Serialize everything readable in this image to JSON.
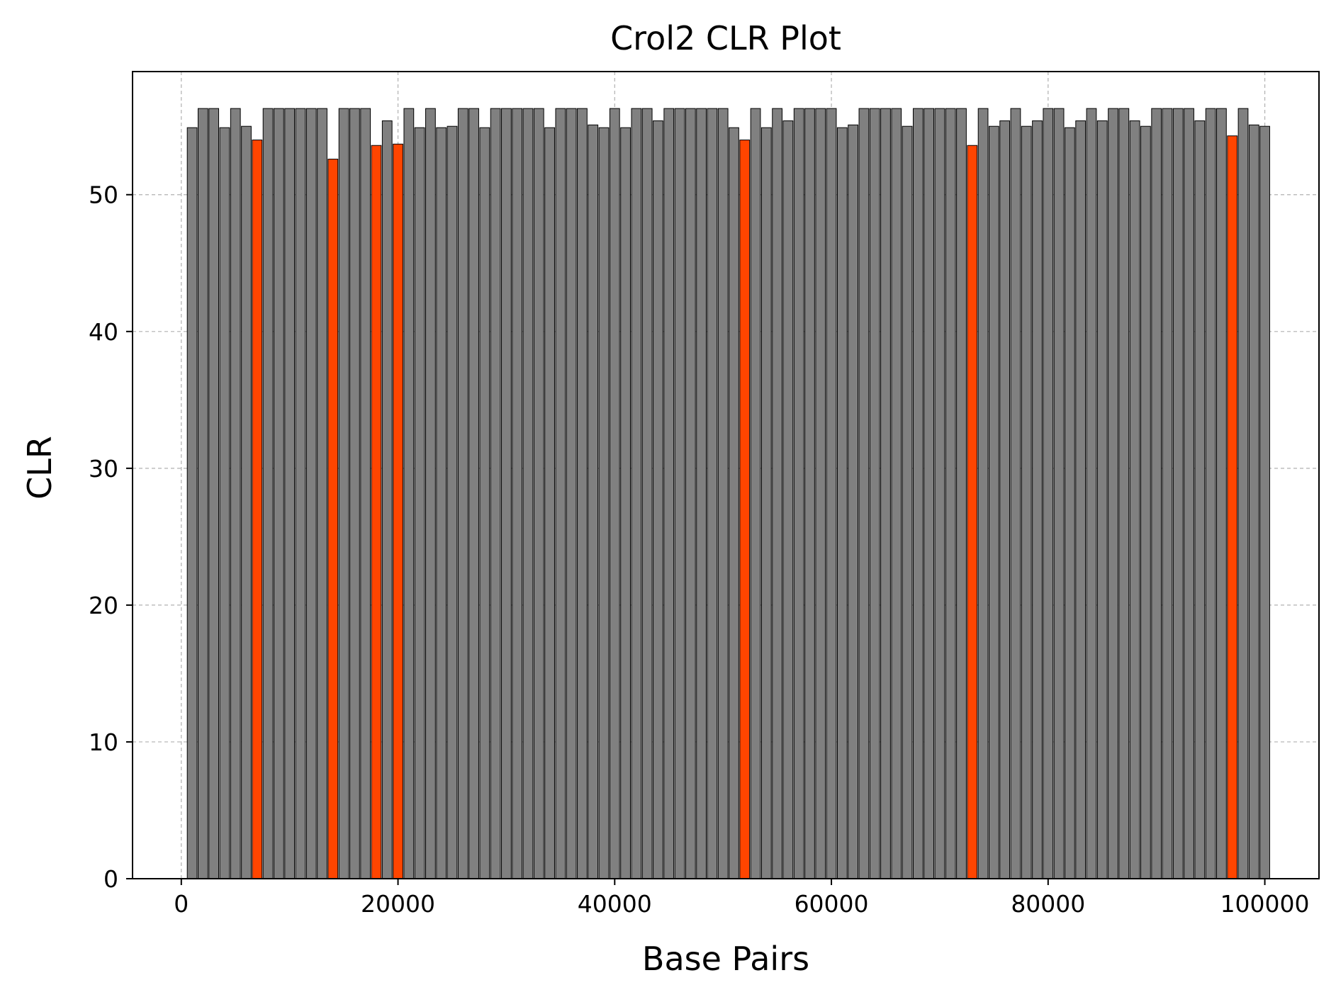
{
  "chart_data": {
    "type": "bar",
    "title": "Crol2 CLR Plot",
    "xlabel": "Base Pairs",
    "ylabel": "CLR",
    "xlim": [
      -4500,
      105000
    ],
    "ylim": [
      0,
      59
    ],
    "xticks": [
      0,
      20000,
      40000,
      60000,
      80000,
      100000
    ],
    "yticks": [
      0,
      10,
      20,
      30,
      40,
      50
    ],
    "grid": true,
    "bar_width": 900,
    "colors": {
      "default": "#808080",
      "highlight": "#ff4500",
      "edge": "#000000",
      "grid": "#b0b0b0"
    },
    "bars": [
      {
        "x": 1000,
        "y": 54.9,
        "highlight": false
      },
      {
        "x": 2000,
        "y": 56.3,
        "highlight": false
      },
      {
        "x": 3000,
        "y": 56.3,
        "highlight": false
      },
      {
        "x": 4000,
        "y": 54.9,
        "highlight": false
      },
      {
        "x": 5000,
        "y": 56.3,
        "highlight": false
      },
      {
        "x": 6000,
        "y": 55.0,
        "highlight": false
      },
      {
        "x": 7000,
        "y": 54.0,
        "highlight": true
      },
      {
        "x": 8000,
        "y": 56.3,
        "highlight": false
      },
      {
        "x": 9000,
        "y": 56.3,
        "highlight": false
      },
      {
        "x": 10000,
        "y": 56.3,
        "highlight": false
      },
      {
        "x": 11000,
        "y": 56.3,
        "highlight": false
      },
      {
        "x": 12000,
        "y": 56.3,
        "highlight": false
      },
      {
        "x": 13000,
        "y": 56.3,
        "highlight": false
      },
      {
        "x": 14000,
        "y": 52.6,
        "highlight": true
      },
      {
        "x": 15000,
        "y": 56.3,
        "highlight": false
      },
      {
        "x": 16000,
        "y": 56.3,
        "highlight": false
      },
      {
        "x": 17000,
        "y": 56.3,
        "highlight": false
      },
      {
        "x": 18000,
        "y": 53.6,
        "highlight": true
      },
      {
        "x": 19000,
        "y": 55.4,
        "highlight": false
      },
      {
        "x": 20000,
        "y": 53.7,
        "highlight": true
      },
      {
        "x": 21000,
        "y": 56.3,
        "highlight": false
      },
      {
        "x": 22000,
        "y": 54.9,
        "highlight": false
      },
      {
        "x": 23000,
        "y": 56.3,
        "highlight": false
      },
      {
        "x": 24000,
        "y": 54.9,
        "highlight": false
      },
      {
        "x": 25000,
        "y": 55.0,
        "highlight": false
      },
      {
        "x": 26000,
        "y": 56.3,
        "highlight": false
      },
      {
        "x": 27000,
        "y": 56.3,
        "highlight": false
      },
      {
        "x": 28000,
        "y": 54.9,
        "highlight": false
      },
      {
        "x": 29000,
        "y": 56.3,
        "highlight": false
      },
      {
        "x": 30000,
        "y": 56.3,
        "highlight": false
      },
      {
        "x": 31000,
        "y": 56.3,
        "highlight": false
      },
      {
        "x": 32000,
        "y": 56.3,
        "highlight": false
      },
      {
        "x": 33000,
        "y": 56.3,
        "highlight": false
      },
      {
        "x": 34000,
        "y": 54.9,
        "highlight": false
      },
      {
        "x": 35000,
        "y": 56.3,
        "highlight": false
      },
      {
        "x": 36000,
        "y": 56.3,
        "highlight": false
      },
      {
        "x": 37000,
        "y": 56.3,
        "highlight": false
      },
      {
        "x": 38000,
        "y": 55.1,
        "highlight": false
      },
      {
        "x": 39000,
        "y": 54.9,
        "highlight": false
      },
      {
        "x": 40000,
        "y": 56.3,
        "highlight": false
      },
      {
        "x": 41000,
        "y": 54.9,
        "highlight": false
      },
      {
        "x": 42000,
        "y": 56.3,
        "highlight": false
      },
      {
        "x": 43000,
        "y": 56.3,
        "highlight": false
      },
      {
        "x": 44000,
        "y": 55.4,
        "highlight": false
      },
      {
        "x": 45000,
        "y": 56.3,
        "highlight": false
      },
      {
        "x": 46000,
        "y": 56.3,
        "highlight": false
      },
      {
        "x": 47000,
        "y": 56.3,
        "highlight": false
      },
      {
        "x": 48000,
        "y": 56.3,
        "highlight": false
      },
      {
        "x": 49000,
        "y": 56.3,
        "highlight": false
      },
      {
        "x": 50000,
        "y": 56.3,
        "highlight": false
      },
      {
        "x": 51000,
        "y": 54.9,
        "highlight": false
      },
      {
        "x": 52000,
        "y": 54.0,
        "highlight": true
      },
      {
        "x": 53000,
        "y": 56.3,
        "highlight": false
      },
      {
        "x": 54000,
        "y": 54.9,
        "highlight": false
      },
      {
        "x": 55000,
        "y": 56.3,
        "highlight": false
      },
      {
        "x": 56000,
        "y": 55.4,
        "highlight": false
      },
      {
        "x": 57000,
        "y": 56.3,
        "highlight": false
      },
      {
        "x": 58000,
        "y": 56.3,
        "highlight": false
      },
      {
        "x": 59000,
        "y": 56.3,
        "highlight": false
      },
      {
        "x": 60000,
        "y": 56.3,
        "highlight": false
      },
      {
        "x": 61000,
        "y": 54.9,
        "highlight": false
      },
      {
        "x": 62000,
        "y": 55.1,
        "highlight": false
      },
      {
        "x": 63000,
        "y": 56.3,
        "highlight": false
      },
      {
        "x": 64000,
        "y": 56.3,
        "highlight": false
      },
      {
        "x": 65000,
        "y": 56.3,
        "highlight": false
      },
      {
        "x": 66000,
        "y": 56.3,
        "highlight": false
      },
      {
        "x": 67000,
        "y": 55.0,
        "highlight": false
      },
      {
        "x": 68000,
        "y": 56.3,
        "highlight": false
      },
      {
        "x": 69000,
        "y": 56.3,
        "highlight": false
      },
      {
        "x": 70000,
        "y": 56.3,
        "highlight": false
      },
      {
        "x": 71000,
        "y": 56.3,
        "highlight": false
      },
      {
        "x": 72000,
        "y": 56.3,
        "highlight": false
      },
      {
        "x": 73000,
        "y": 53.6,
        "highlight": true
      },
      {
        "x": 74000,
        "y": 56.3,
        "highlight": false
      },
      {
        "x": 75000,
        "y": 55.0,
        "highlight": false
      },
      {
        "x": 76000,
        "y": 55.4,
        "highlight": false
      },
      {
        "x": 77000,
        "y": 56.3,
        "highlight": false
      },
      {
        "x": 78000,
        "y": 55.0,
        "highlight": false
      },
      {
        "x": 79000,
        "y": 55.4,
        "highlight": false
      },
      {
        "x": 80000,
        "y": 56.3,
        "highlight": false
      },
      {
        "x": 81000,
        "y": 56.3,
        "highlight": false
      },
      {
        "x": 82000,
        "y": 54.9,
        "highlight": false
      },
      {
        "x": 83000,
        "y": 55.4,
        "highlight": false
      },
      {
        "x": 84000,
        "y": 56.3,
        "highlight": false
      },
      {
        "x": 85000,
        "y": 55.4,
        "highlight": false
      },
      {
        "x": 86000,
        "y": 56.3,
        "highlight": false
      },
      {
        "x": 87000,
        "y": 56.3,
        "highlight": false
      },
      {
        "x": 88000,
        "y": 55.4,
        "highlight": false
      },
      {
        "x": 89000,
        "y": 55.0,
        "highlight": false
      },
      {
        "x": 90000,
        "y": 56.3,
        "highlight": false
      },
      {
        "x": 91000,
        "y": 56.3,
        "highlight": false
      },
      {
        "x": 92000,
        "y": 56.3,
        "highlight": false
      },
      {
        "x": 93000,
        "y": 56.3,
        "highlight": false
      },
      {
        "x": 94000,
        "y": 55.4,
        "highlight": false
      },
      {
        "x": 95000,
        "y": 56.3,
        "highlight": false
      },
      {
        "x": 96000,
        "y": 56.3,
        "highlight": false
      },
      {
        "x": 97000,
        "y": 54.3,
        "highlight": true
      },
      {
        "x": 98000,
        "y": 56.3,
        "highlight": false
      },
      {
        "x": 99000,
        "y": 55.1,
        "highlight": false
      },
      {
        "x": 100000,
        "y": 55.0,
        "highlight": false
      }
    ]
  }
}
